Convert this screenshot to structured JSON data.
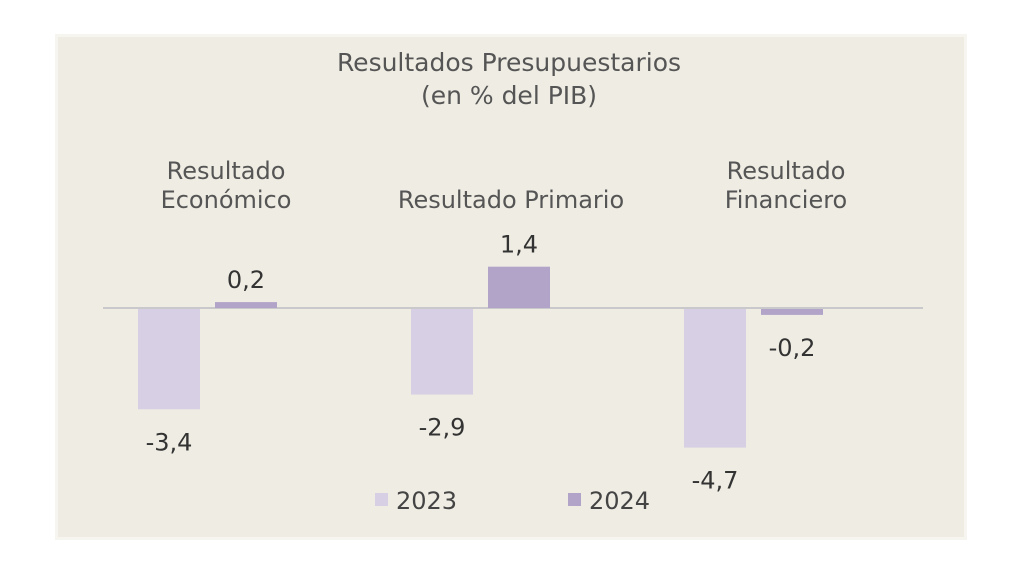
{
  "chart_data": {
    "type": "bar",
    "title": "Resultados Presupuestarios",
    "subtitle": "(en % del PIB)",
    "categories": [
      [
        "Resultado",
        "Económico"
      ],
      [
        "Resultado Primario"
      ],
      [
        "Resultado",
        "Financiero"
      ]
    ],
    "series": [
      {
        "name": "2023",
        "color": "#d7cfe3",
        "values": [
          -3.4,
          -2.9,
          -4.7
        ],
        "labels": [
          "-3,4",
          "-2,9",
          "-4,7"
        ]
      },
      {
        "name": "2024",
        "color": "#b2a3c8",
        "values": [
          0.2,
          1.4,
          -0.2
        ],
        "labels": [
          "0,2",
          "1,4",
          "-0,2"
        ]
      }
    ],
    "legend": "bottom-center",
    "grid": false,
    "baseline_color": "#c9c9cc"
  }
}
